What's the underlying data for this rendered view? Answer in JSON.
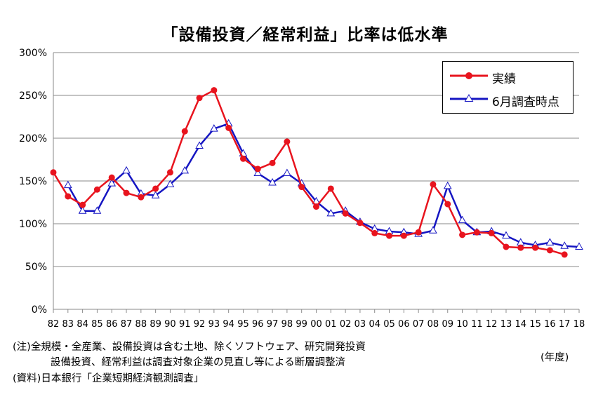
{
  "chart_data": {
    "type": "line",
    "title": "「設備投資／経常利益」比率は低水準",
    "x": [
      "82",
      "83",
      "84",
      "85",
      "86",
      "87",
      "88",
      "89",
      "90",
      "91",
      "92",
      "93",
      "94",
      "95",
      "96",
      "97",
      "98",
      "99",
      "00",
      "01",
      "02",
      "03",
      "04",
      "05",
      "06",
      "07",
      "08",
      "09",
      "10",
      "11",
      "12",
      "13",
      "14",
      "15",
      "16",
      "17",
      "18"
    ],
    "y_ticks": [
      "0%",
      "50%",
      "100%",
      "150%",
      "200%",
      "250%",
      "300%"
    ],
    "ylim": [
      0,
      300
    ],
    "grid": true,
    "legend_position": "top-right",
    "series": [
      {
        "name": "実績",
        "color": "#e8141e",
        "marker": "circle",
        "values": [
          160,
          132,
          122,
          140,
          154,
          136,
          131,
          141,
          160,
          208,
          247,
          256,
          212,
          176,
          164,
          171,
          196,
          143,
          120,
          141,
          112,
          101,
          89,
          86,
          86,
          90,
          146,
          123,
          87,
          90,
          89,
          73,
          72,
          72,
          69,
          64,
          null
        ]
      },
      {
        "name": "6月調査時点",
        "color": "#1515c2",
        "marker": "triangle",
        "values": [
          null,
          145,
          115,
          115,
          147,
          162,
          135,
          133,
          146,
          162,
          191,
          211,
          217,
          182,
          159,
          148,
          159,
          147,
          126,
          112,
          115,
          102,
          94,
          91,
          90,
          88,
          92,
          144,
          104,
          90,
          91,
          86,
          78,
          75,
          78,
          74,
          73
        ]
      }
    ]
  },
  "notes": {
    "line1": "(注)全規模・全産業、設備投資は含む土地、除くソフトウェア、研究開発投資",
    "line2": "設備投資、経常利益は調査対象企業の見直し等による断層調整済",
    "line3": "(資料)日本銀行「企業短期経済観測調査」",
    "unit": "(年度)"
  }
}
